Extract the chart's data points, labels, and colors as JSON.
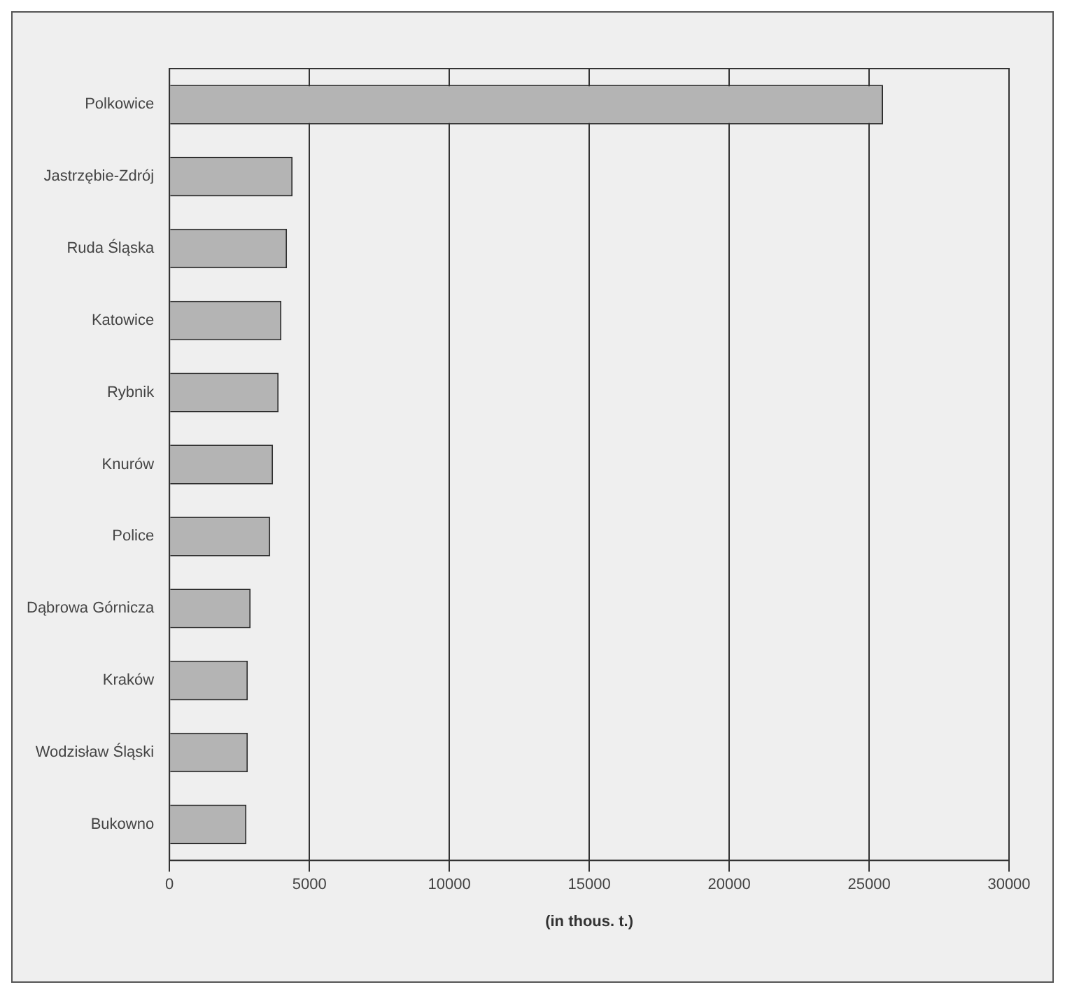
{
  "chart_data": {
    "type": "bar",
    "orientation": "horizontal",
    "xlabel": "(in thous. t.)",
    "categories": [
      "Polkowice",
      "Jastrzębie-Zdrój",
      "Ruda Śląska",
      "Katowice",
      "Rybnik",
      "Knurów",
      "Police",
      "Dąbrowa Górnicza",
      "Kraków",
      "Wodzisław Śląski",
      "Bukowno"
    ],
    "values": [
      25500,
      4400,
      4200,
      4000,
      3900,
      3700,
      3600,
      2900,
      2800,
      2800,
      2750
    ],
    "color": "#b4b4b4",
    "xlim": [
      0,
      30000
    ],
    "xticks": [
      0,
      5000,
      10000,
      15000,
      20000,
      25000,
      30000
    ],
    "grid": "x"
  }
}
